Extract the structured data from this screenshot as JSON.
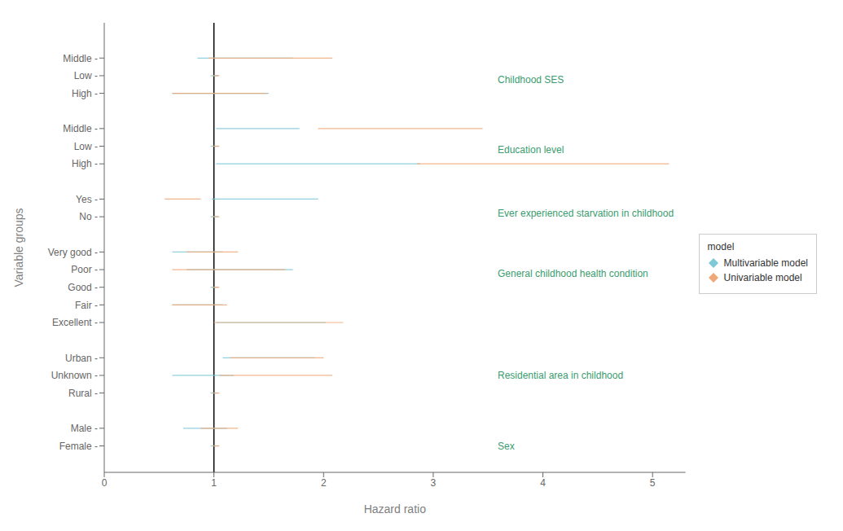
{
  "chart_data": {
    "type": "forest",
    "xlabel": "Hazard ratio",
    "ylabel": "Variable groups",
    "xlim": [
      0,
      5.3
    ],
    "xticks": [
      0,
      1,
      2,
      3,
      4,
      5
    ],
    "ylim": [
      -5.5,
      20.0
    ],
    "yticks": [
      {
        "value": 18,
        "label": "Middle -"
      },
      {
        "value": 17,
        "label": "Low -"
      },
      {
        "value": 16,
        "label": "High -"
      },
      {
        "value": 14,
        "label": "Middle -"
      },
      {
        "value": 13,
        "label": "Low -"
      },
      {
        "value": 12,
        "label": "High -"
      },
      {
        "value": 10,
        "label": "Yes -"
      },
      {
        "value": 9,
        "label": "No -"
      },
      {
        "value": 7,
        "label": "Very good -"
      },
      {
        "value": 6,
        "label": "Poor -"
      },
      {
        "value": 5,
        "label": "Good -"
      },
      {
        "value": 4,
        "label": "Fair -"
      },
      {
        "value": 3,
        "label": "Excellent -"
      },
      {
        "value": 1,
        "label": "Urban -"
      },
      {
        "value": 0,
        "label": "Unknown -"
      },
      {
        "value": -1,
        "label": "Rural -"
      },
      {
        "value": -3,
        "label": "Male -"
      },
      {
        "value": -4,
        "label": "Female -"
      }
    ],
    "y": [
      18,
      17,
      16,
      14,
      13,
      12,
      10,
      9,
      7,
      6,
      5,
      4,
      3,
      1,
      0,
      -1,
      -3,
      -4
    ],
    "series": [
      {
        "name": "Multivariable model",
        "color": "#7EC8D8",
        "marker": "diamond",
        "values": [
          1.05,
          1.01,
          0.97,
          1.38,
          1.01,
          1.62,
          1.2,
          1.01,
          0.85,
          1.08,
          1.01,
          0.88,
          1.35,
          1.35,
          0.85,
          1.01,
          0.92,
          1.01
        ],
        "lower": [
          0.85,
          0.97,
          0.62,
          1.02,
          0.97,
          1.02,
          0.98,
          0.97,
          0.62,
          0.75,
          0.97,
          0.62,
          1.02,
          1.08,
          0.62,
          0.97,
          0.72,
          0.97
        ],
        "upper": [
          1.72,
          1.04,
          1.5,
          1.78,
          1.04,
          2.88,
          1.95,
          1.04,
          1.08,
          1.72,
          1.04,
          1.08,
          2.02,
          1.92,
          1.18,
          1.04,
          1.12,
          1.04
        ]
      },
      {
        "name": "Univariable model",
        "color": "#F0A878",
        "marker": "diamond",
        "values": [
          1.32,
          1.02,
          0.96,
          2.58,
          1.02,
          3.52,
          0.72,
          1.02,
          0.98,
          0.95,
          1.02,
          0.85,
          1.32,
          1.52,
          1.42,
          1.02,
          1.02,
          1.02
        ],
        "lower": [
          0.95,
          0.99,
          0.62,
          1.95,
          0.99,
          2.85,
          0.55,
          0.99,
          0.75,
          0.62,
          0.99,
          0.62,
          1.0,
          1.15,
          1.05,
          0.99,
          0.88,
          0.99
        ],
        "upper": [
          2.08,
          1.05,
          1.48,
          3.45,
          1.05,
          5.15,
          0.88,
          1.05,
          1.22,
          1.65,
          1.05,
          1.12,
          2.18,
          2.0,
          2.08,
          1.05,
          1.22,
          1.05
        ]
      }
    ],
    "reference_lines": [
      {
        "x": 1.0,
        "color": "#000000"
      }
    ],
    "annotations": [
      {
        "text": "Childhood SES",
        "x": 3.55,
        "y": 16.8,
        "color": "#3A9C6E"
      },
      {
        "text": "Education level",
        "x": 3.55,
        "y": 12.8,
        "color": "#3A9C6E"
      },
      {
        "text": "Ever experienced starvation in childhood",
        "x": 3.55,
        "y": 9.2,
        "color": "#3A9C6E"
      },
      {
        "text": "General childhood health condition",
        "x": 3.55,
        "y": 5.8,
        "color": "#3A9C6E"
      },
      {
        "text": "Residential area in childhood",
        "x": 3.55,
        "y": 0.0,
        "color": "#3A9C6E"
      },
      {
        "text": "Sex",
        "x": 3.55,
        "y": -4.0,
        "color": "#3A9C6E"
      }
    ],
    "legend": "right",
    "legend_title": "model",
    "grid": false
  }
}
